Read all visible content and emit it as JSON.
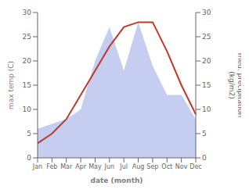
{
  "chart_data": {
    "type": "line",
    "categories": [
      "Jan",
      "Feb",
      "Mar",
      "Apr",
      "May",
      "Jun",
      "Jul",
      "Aug",
      "Sep",
      "Oct",
      "Nov",
      "Dec"
    ],
    "series": [
      {
        "type": "area",
        "axis": "y2",
        "color": "#c5cdf0",
        "values": [
          6,
          7,
          8,
          10,
          20,
          27,
          18,
          28,
          19,
          13,
          13,
          8
        ]
      },
      {
        "type": "line",
        "color": "#c0392b",
        "values": [
          3,
          5,
          8,
          13,
          18,
          23,
          27,
          28,
          28,
          22,
          15,
          9
        ]
      }
    ],
    "xlabel": "date (month)",
    "ylabel": "max temp (C)",
    "y2label": "med. precipitation\n(kg/m2)",
    "ylim": [
      0,
      30
    ],
    "yticks": [
      0,
      5,
      10,
      15,
      20,
      25,
      30
    ],
    "y2lim": [
      0,
      30
    ],
    "y2ticks": [
      0,
      5,
      10,
      15,
      20,
      25,
      30
    ],
    "grid": false
  }
}
